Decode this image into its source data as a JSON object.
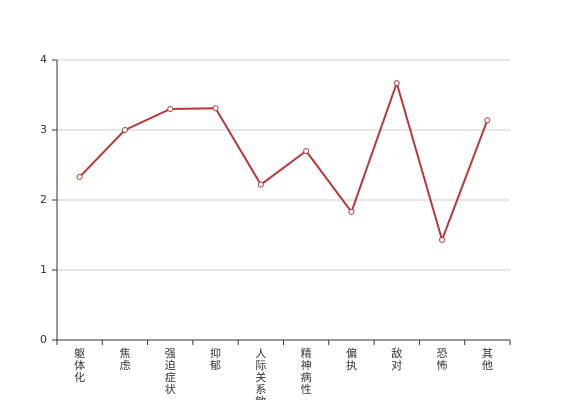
{
  "chart_data": {
    "type": "line",
    "categories": [
      "躯体化",
      "焦虑",
      "强迫症状",
      "抑郁",
      "人际关系敏感",
      "精神病性",
      "偏执",
      "敌对",
      "恐怖",
      "其他"
    ],
    "series": [
      {
        "color": "#b8383a",
        "values": [
          2.33,
          3.0,
          3.3,
          3.31,
          2.22,
          2.7,
          1.83,
          3.67,
          1.43,
          3.14
        ]
      }
    ],
    "ylim": [
      0,
      4
    ],
    "yticks": [
      0,
      1,
      2,
      3,
      4
    ],
    "grid": true
  }
}
